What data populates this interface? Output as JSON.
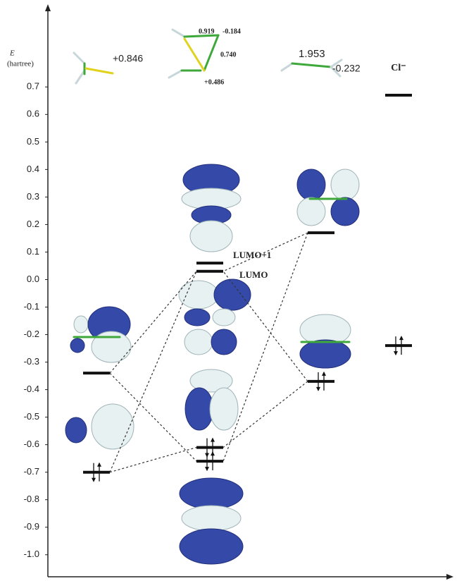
{
  "chart_data": {
    "type": "levels",
    "y_label_symbol": "E",
    "y_label_unit": "(hartree)",
    "ylim": [
      -1.08,
      0.98
    ],
    "yticks": [
      0.7,
      0.6,
      0.5,
      0.4,
      0.3,
      0.2,
      0.1,
      {
        "value": 0,
        "label": "0.0"
      },
      -0.1,
      -0.2,
      -0.3,
      -0.4,
      -0.5,
      -0.6,
      -0.7,
      -0.8,
      -0.9,
      {
        "value": -1,
        "label": "-1.0"
      }
    ],
    "columns": [
      {
        "charges": [
          "+0.846"
        ],
        "levels": [
          {
            "energy": -0.34,
            "occupied": false
          },
          {
            "energy": -0.7,
            "occupied": true
          }
        ]
      },
      {
        "charges": [
          "0.919",
          "-0.184",
          "0.740",
          "+0.486"
        ],
        "levels": [
          {
            "energy": 0.06,
            "occupied": false,
            "label": "LUMO+1"
          },
          {
            "energy": 0.03,
            "occupied": false,
            "label": "LUMO"
          },
          {
            "energy": -0.61,
            "occupied": true
          },
          {
            "energy": -0.66,
            "occupied": true
          }
        ]
      },
      {
        "charges": [
          "1.953",
          "-0.232"
        ],
        "levels": [
          {
            "energy": 0.17,
            "occupied": false
          },
          {
            "energy": -0.37,
            "occupied": true
          }
        ]
      },
      {
        "name": "Cl⁻",
        "levels": [
          {
            "energy": 0.67,
            "occupied": false
          },
          {
            "energy": -0.24,
            "occupied": true
          }
        ]
      }
    ]
  }
}
